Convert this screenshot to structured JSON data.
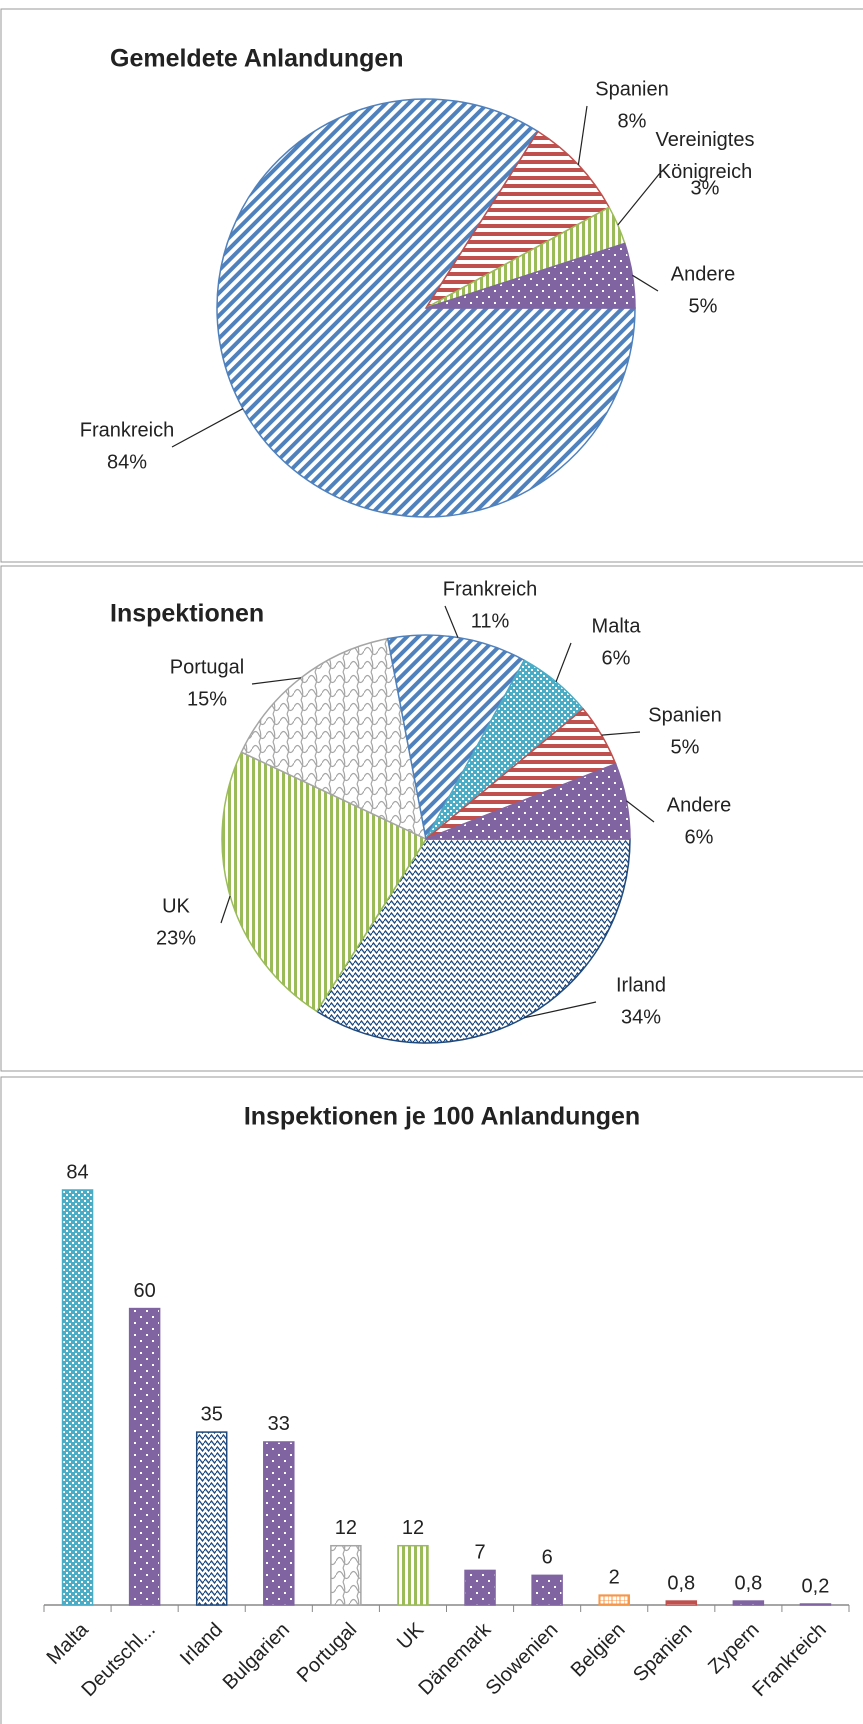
{
  "chart_data": [
    {
      "type": "pie",
      "title": "Gemeldete Anlandungen",
      "categories": [
        "Frankreich",
        "Spanien",
        "Vereinigtes Königreich",
        "Andere"
      ],
      "values": [
        84,
        8,
        3,
        5
      ],
      "value_labels": [
        "84%",
        "8%",
        "3%",
        "5%"
      ],
      "colors": [
        "#4f81bd",
        "#c0504d",
        "#9bbb59",
        "#8064a2"
      ],
      "patterns": [
        "diagonal",
        "horizontal",
        "vertical",
        "dots"
      ]
    },
    {
      "type": "pie",
      "title": "Inspektionen",
      "categories": [
        "Irland",
        "UK",
        "Portugal",
        "Frankreich",
        "Malta",
        "Spanien",
        "Andere"
      ],
      "values": [
        34,
        23,
        15,
        11,
        6,
        5,
        6
      ],
      "value_labels": [
        "34%",
        "23%",
        "15%",
        "11%",
        "6%",
        "5%",
        "6%"
      ],
      "colors": [
        "#1f497d",
        "#9bbb59",
        "#a5a5a5",
        "#4f81bd",
        "#4bacc6",
        "#c0504d",
        "#8064a2"
      ],
      "patterns": [
        "wave",
        "vertical",
        "lattice",
        "diagonal",
        "checker",
        "horizontal",
        "dots"
      ]
    },
    {
      "type": "bar",
      "title": "Inspektionen je 100 Anlandungen",
      "categories": [
        "Malta",
        "Deutschl...",
        "Irland",
        "Bulgarien",
        "Portugal",
        "UK",
        "Dänemark",
        "Slowenien",
        "Belgien",
        "Spanien",
        "Zypern",
        "Frankreich"
      ],
      "values": [
        84,
        60,
        35,
        33,
        12,
        12,
        7,
        6,
        2,
        0.8,
        0.8,
        0.2
      ],
      "value_labels": [
        "84",
        "60",
        "35",
        "33",
        "12",
        "12",
        "7",
        "6",
        "2",
        "0,8",
        "0,8",
        "0,2"
      ],
      "colors": [
        "#4bacc6",
        "#8064a2",
        "#1f497d",
        "#8064a2",
        "#a5a5a5",
        "#9bbb59",
        "#8064a2",
        "#8064a2",
        "#f79646",
        "#c0504d",
        "#8064a2",
        "#8064a2"
      ],
      "patterns": [
        "checker",
        "dots",
        "wave",
        "dots",
        "lattice",
        "vertical",
        "dots",
        "dots",
        "grid",
        "horizontal",
        "dots",
        "dots"
      ]
    }
  ]
}
